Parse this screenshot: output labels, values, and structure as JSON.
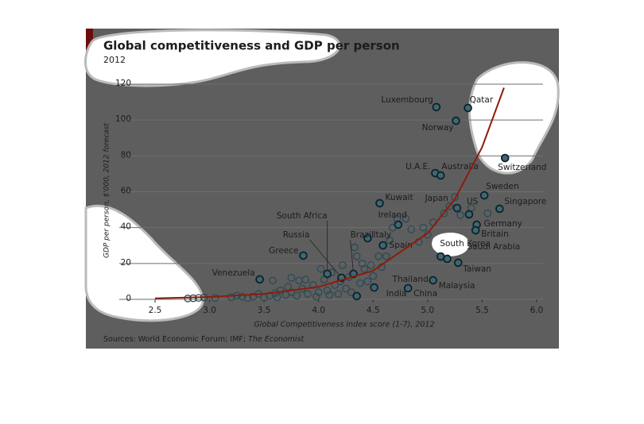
{
  "chart_data": {
    "type": "scatter",
    "title": "Global competitiveness and GDP per person",
    "subtitle": "2012",
    "y_label": "GDP per person, $'000, 2012 forecast",
    "x_label": "Global Competitiveness Index score (1-7), 2012",
    "source": "Sources: World Economic Forum; IMF;",
    "source_italic": "The Economist",
    "xlim": [
      2.5,
      6.0
    ],
    "ylim": [
      0,
      120
    ],
    "xticks": [
      2.5,
      {
        "value": 3,
        "label": "3.0"
      },
      3.5,
      {
        "value": 4,
        "label": "4.0"
      },
      4.5,
      {
        "value": 5,
        "label": "5.0"
      },
      5.5,
      {
        "value": 6,
        "label": "6.0"
      }
    ],
    "yticks": [
      0,
      20,
      40,
      60,
      80,
      100,
      120
    ],
    "grid": true,
    "point_color": "#2b4a55",
    "curve_color": "#8e1b0c",
    "labeled_points": [
      {
        "label": "Luxembourg",
        "x": 5.08,
        "y": 107.2
      },
      {
        "label": "Qatar",
        "x": 5.37,
        "y": 106.7
      },
      {
        "label": "Norway",
        "x": 5.26,
        "y": 99.6
      },
      {
        "label": "U.A.E.",
        "x": 5.07,
        "y": 70.4
      },
      {
        "label": "Australia",
        "x": 5.12,
        "y": 69.1
      },
      {
        "label": "Switzerland",
        "x": 5.71,
        "y": 78.8
      },
      {
        "label": "Sweden",
        "x": 5.52,
        "y": 58
      },
      {
        "label": "Singapore",
        "x": 5.66,
        "y": 50.5
      },
      {
        "label": "US",
        "x": 5.38,
        "y": 47.4
      },
      {
        "label": "Japan",
        "x": 5.27,
        "y": 50.9
      },
      {
        "label": "Kuwait",
        "x": 4.56,
        "y": 53.6
      },
      {
        "label": "Ireland",
        "x": 4.73,
        "y": 41.6
      },
      {
        "label": "Italy",
        "x": 4.45,
        "y": 34.1
      },
      {
        "label": "Spain",
        "x": 4.59,
        "y": 30.1
      },
      {
        "label": "South Africa",
        "x": 4.08,
        "y": 14.2
      },
      {
        "label": "Brazil",
        "x": 4.32,
        "y": 14.2
      },
      {
        "label": "Russia",
        "x": 4.21,
        "y": 12
      },
      {
        "label": "Greece",
        "x": 3.86,
        "y": 24.4
      },
      {
        "label": "Venezuela",
        "x": 3.46,
        "y": 11.1
      },
      {
        "label": "South Korea",
        "x": 5.12,
        "y": 23.9
      },
      {
        "label": "Saudi Arabia",
        "x": 5.18,
        "y": 22.6
      },
      {
        "label": "Taiwan",
        "x": 5.28,
        "y": 20.4
      },
      {
        "label": "Thailand",
        "x": 4.51,
        "y": 6.6
      },
      {
        "label": "Malaysia",
        "x": 5.05,
        "y": 10.6
      },
      {
        "label": "India",
        "x": 4.35,
        "y": 1.8
      },
      {
        "label": "China",
        "x": 4.82,
        "y": 6.2
      },
      {
        "label": "Germany",
        "x": 5.45,
        "y": 41.6
      },
      {
        "label": "Britain",
        "x": 5.44,
        "y": 38.5
      }
    ],
    "other_points": [
      [
        2.8,
        0.5
      ],
      [
        2.85,
        0.6
      ],
      [
        2.9,
        0.8
      ],
      [
        2.95,
        1
      ],
      [
        3.05,
        0.8
      ],
      [
        3.2,
        1.2
      ],
      [
        3.25,
        2
      ],
      [
        3.3,
        1.5
      ],
      [
        3.35,
        0.8
      ],
      [
        3.4,
        1.5
      ],
      [
        3.45,
        3
      ],
      [
        3.5,
        1
      ],
      [
        3.55,
        2
      ],
      [
        3.6,
        3.5
      ],
      [
        3.62,
        1.2
      ],
      [
        3.65,
        5
      ],
      [
        3.7,
        2.5
      ],
      [
        3.72,
        7
      ],
      [
        3.75,
        4
      ],
      [
        3.8,
        2
      ],
      [
        3.82,
        10.5
      ],
      [
        3.85,
        6
      ],
      [
        3.88,
        11
      ],
      [
        3.9,
        3
      ],
      [
        3.95,
        8
      ],
      [
        3.98,
        1.5
      ],
      [
        4.0,
        4
      ],
      [
        4.02,
        17
      ],
      [
        4.05,
        11
      ],
      [
        4.08,
        5
      ],
      [
        4.1,
        2.5
      ],
      [
        4.12,
        15
      ],
      [
        4.15,
        8
      ],
      [
        4.18,
        3
      ],
      [
        4.2,
        10
      ],
      [
        4.22,
        19
      ],
      [
        4.25,
        6
      ],
      [
        4.28,
        12.5
      ],
      [
        4.3,
        4
      ],
      [
        4.33,
        29
      ],
      [
        4.35,
        24
      ],
      [
        4.38,
        9
      ],
      [
        4.4,
        20
      ],
      [
        4.42,
        17
      ],
      [
        4.45,
        10
      ],
      [
        4.48,
        19
      ],
      [
        4.5,
        13
      ],
      [
        4.55,
        24
      ],
      [
        4.58,
        18
      ],
      [
        4.62,
        24
      ],
      [
        4.65,
        33
      ],
      [
        4.68,
        40
      ],
      [
        4.72,
        45
      ],
      [
        4.8,
        45
      ],
      [
        4.85,
        39
      ],
      [
        4.92,
        32
      ],
      [
        4.96,
        40
      ],
      [
        5.0,
        36
      ],
      [
        5.05,
        43
      ],
      [
        5.15,
        48
      ],
      [
        5.2,
        52
      ],
      [
        5.25,
        57
      ],
      [
        5.3,
        47
      ],
      [
        5.4,
        51
      ],
      [
        5.55,
        48
      ],
      [
        3.58,
        10.5
      ],
      [
        3.75,
        12
      ]
    ],
    "trend": {
      "x": [
        2.5,
        3.0,
        3.5,
        4.0,
        4.5,
        5.0,
        5.25,
        5.5,
        5.7
      ],
      "y": [
        0.57,
        1.32,
        3.04,
        6.97,
        16.0,
        36.9,
        55.9,
        84.9,
        118
      ]
    }
  }
}
